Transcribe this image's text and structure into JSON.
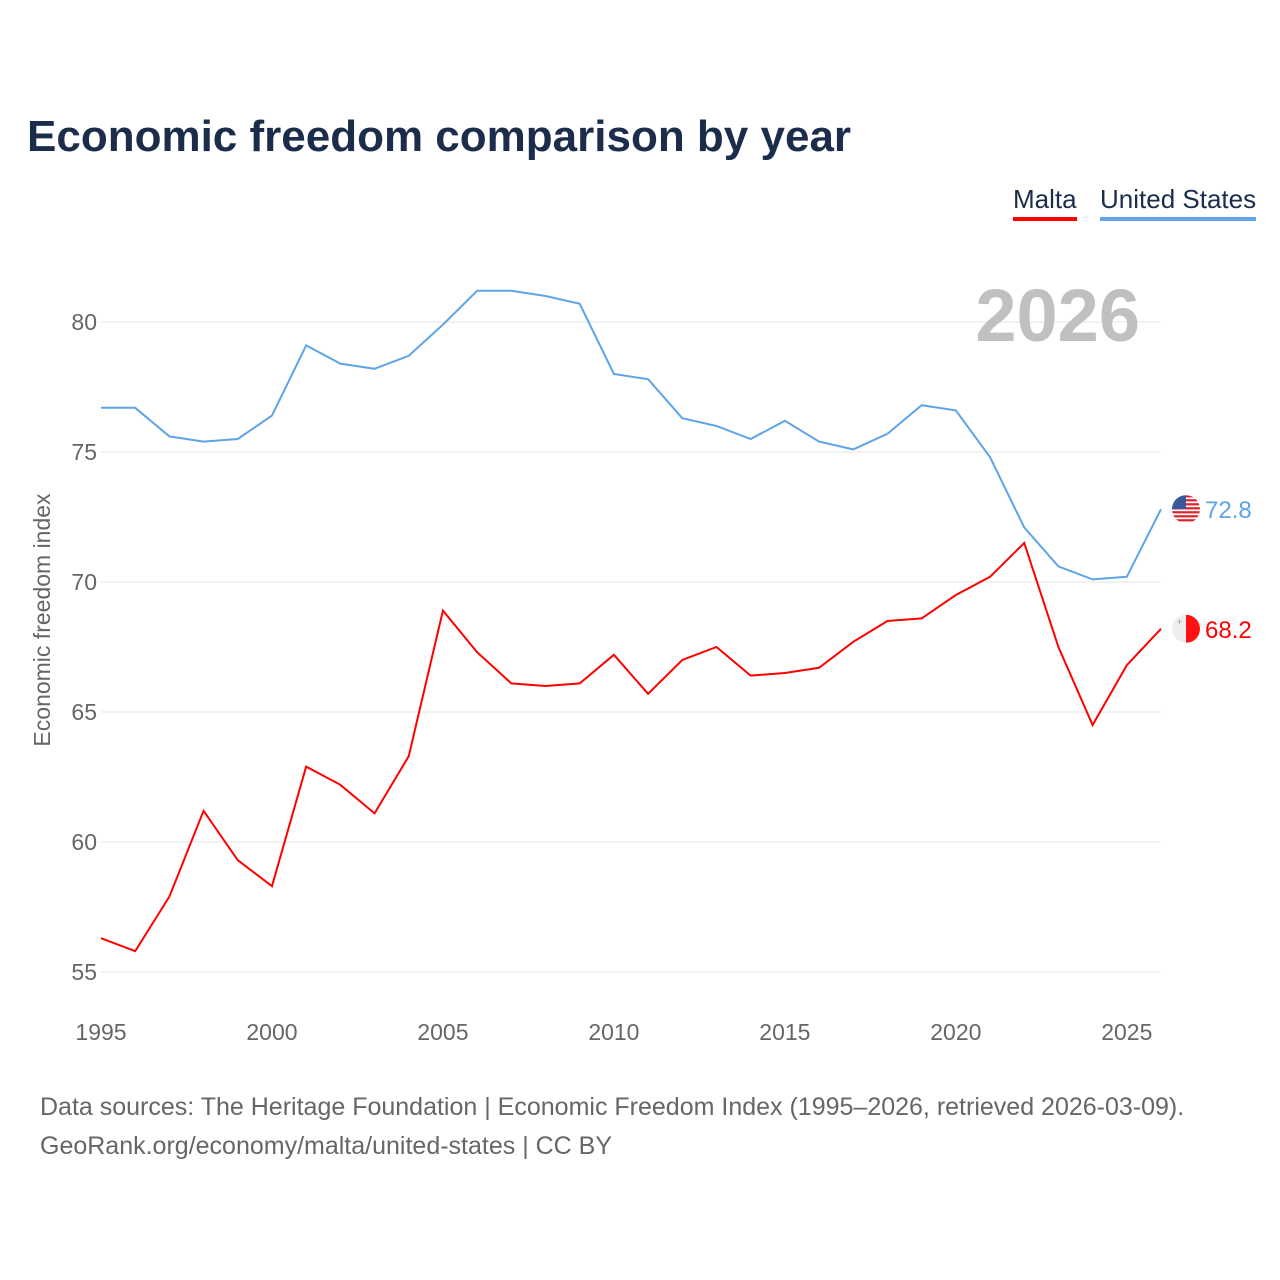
{
  "chart_data": {
    "type": "line",
    "title": "Economic freedom comparison by year",
    "ylabel": "Economic freedom index",
    "xlabel": "",
    "xlim": [
      1995,
      2026
    ],
    "ylim": [
      55,
      82
    ],
    "yticks": [
      55,
      60,
      65,
      70,
      75,
      80
    ],
    "xticks": [
      1995,
      2000,
      2005,
      2010,
      2015,
      2020,
      2025
    ],
    "grid": true,
    "legend_position": "top-right",
    "year_label": "2026",
    "x": [
      1995,
      1996,
      1997,
      1998,
      1999,
      2000,
      2001,
      2002,
      2003,
      2004,
      2005,
      2006,
      2007,
      2008,
      2009,
      2010,
      2011,
      2012,
      2013,
      2014,
      2015,
      2016,
      2017,
      2018,
      2019,
      2020,
      2021,
      2022,
      2023,
      2024,
      2025,
      2026
    ],
    "series": [
      {
        "name": "Malta",
        "color": "#ff0000",
        "end_label": "68.2",
        "flag": "malta-flag",
        "values": [
          56.3,
          55.8,
          57.9,
          61.2,
          59.3,
          58.3,
          62.9,
          62.2,
          61.1,
          63.3,
          68.9,
          67.3,
          66.1,
          66.0,
          66.1,
          67.2,
          65.7,
          67.0,
          67.5,
          66.4,
          66.5,
          66.7,
          67.7,
          68.5,
          68.6,
          69.5,
          70.2,
          71.5,
          67.5,
          64.5,
          66.8,
          68.2
        ]
      },
      {
        "name": "United States",
        "color": "#5fa4e8",
        "end_label": "72.8",
        "flag": "us-flag",
        "values": [
          76.7,
          76.7,
          75.6,
          75.4,
          75.5,
          76.4,
          79.1,
          78.4,
          78.2,
          78.7,
          79.9,
          81.2,
          81.2,
          81.0,
          80.7,
          78.0,
          77.8,
          76.3,
          76.0,
          75.5,
          76.2,
          75.4,
          75.1,
          75.7,
          76.8,
          76.6,
          74.8,
          72.1,
          70.6,
          70.1,
          70.2,
          72.8
        ]
      }
    ]
  },
  "source": {
    "line1": "Data sources: The Heritage Foundation | Economic Freedom Index (1995–2026, retrieved 2026-03-09).",
    "line2": "GeoRank.org/economy/malta/united-states | CC BY"
  }
}
